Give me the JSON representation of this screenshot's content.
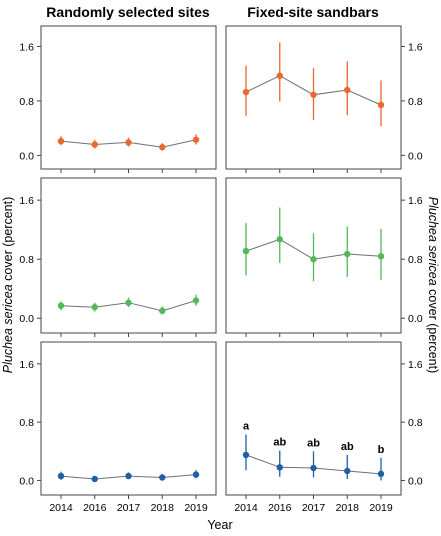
{
  "titles": {
    "left": "Randomly selected sites",
    "right": "Fixed-site sandbars"
  },
  "axis": {
    "xlabel": "Year",
    "ylabel_species": "Pluchea sericea",
    "ylabel_rest": " cover (percent)"
  },
  "colors": {
    "orange": "#e8682e",
    "green": "#52b85a",
    "blue": "#1f5fa8",
    "line": "#707070"
  },
  "chart_data": [
    {
      "type": "line",
      "panel": "row1-left",
      "title": "Randomly selected sites",
      "color": "orange",
      "x": [
        "2014",
        "2016",
        "2017",
        "2018",
        "2019"
      ],
      "y": [
        0.21,
        0.16,
        0.19,
        0.12,
        0.23
      ],
      "err_low": [
        0.15,
        0.1,
        0.13,
        0.07,
        0.16
      ],
      "err_high": [
        0.28,
        0.23,
        0.26,
        0.18,
        0.31
      ],
      "yticks": [
        "0.0",
        "0.8",
        "1.6"
      ],
      "ylim": [
        -0.2,
        1.9
      ],
      "tick_side": "left",
      "show_xticks": false
    },
    {
      "type": "line",
      "panel": "row1-right",
      "title": "Fixed-site sandbars",
      "color": "orange",
      "x": [
        "2014",
        "2016",
        "2017",
        "2018",
        "2019"
      ],
      "y": [
        0.93,
        1.17,
        0.89,
        0.96,
        0.74
      ],
      "err_low": [
        0.58,
        0.79,
        0.52,
        0.59,
        0.43
      ],
      "err_high": [
        1.32,
        1.66,
        1.28,
        1.38,
        1.1
      ],
      "yticks": [
        "0.0",
        "0.8",
        "1.6"
      ],
      "ylim": [
        -0.2,
        1.9
      ],
      "tick_side": "right",
      "show_xticks": false
    },
    {
      "type": "line",
      "panel": "row2-left",
      "color": "green",
      "x": [
        "2014",
        "2016",
        "2017",
        "2018",
        "2019"
      ],
      "y": [
        0.17,
        0.15,
        0.21,
        0.1,
        0.24
      ],
      "err_low": [
        0.11,
        0.09,
        0.15,
        0.05,
        0.17
      ],
      "err_high": [
        0.23,
        0.21,
        0.28,
        0.16,
        0.32
      ],
      "yticks": [
        "0.0",
        "0.8",
        "1.6"
      ],
      "ylim": [
        -0.2,
        1.9
      ],
      "tick_side": "left",
      "show_xticks": false
    },
    {
      "type": "line",
      "panel": "row2-right",
      "color": "green",
      "x": [
        "2014",
        "2016",
        "2017",
        "2018",
        "2019"
      ],
      "y": [
        0.91,
        1.07,
        0.8,
        0.87,
        0.84
      ],
      "err_low": [
        0.58,
        0.75,
        0.5,
        0.56,
        0.52
      ],
      "err_high": [
        1.29,
        1.5,
        1.15,
        1.24,
        1.21
      ],
      "yticks": [
        "0.0",
        "0.8",
        "1.6"
      ],
      "ylim": [
        -0.2,
        1.9
      ],
      "tick_side": "right",
      "show_xticks": false
    },
    {
      "type": "line",
      "panel": "row3-left",
      "color": "blue",
      "x": [
        "2014",
        "2016",
        "2017",
        "2018",
        "2019"
      ],
      "y": [
        0.06,
        0.02,
        0.06,
        0.04,
        0.08
      ],
      "err_low": [
        0.01,
        -0.01,
        0.02,
        0.0,
        0.03
      ],
      "err_high": [
        0.12,
        0.06,
        0.11,
        0.09,
        0.14
      ],
      "yticks": [
        "0.0",
        "0.8",
        "1.6"
      ],
      "ylim": [
        -0.2,
        1.9
      ],
      "tick_side": "left",
      "show_xticks": true
    },
    {
      "type": "line",
      "panel": "row3-right",
      "color": "blue",
      "x": [
        "2014",
        "2016",
        "2017",
        "2018",
        "2019"
      ],
      "y": [
        0.35,
        0.18,
        0.17,
        0.13,
        0.09
      ],
      "err_low": [
        0.14,
        0.05,
        0.04,
        0.02,
        0.0
      ],
      "err_high": [
        0.63,
        0.41,
        0.4,
        0.35,
        0.31
      ],
      "annotations": [
        "a",
        "ab",
        "ab",
        "ab",
        "b"
      ],
      "yticks": [
        "0.0",
        "0.8",
        "1.6"
      ],
      "ylim": [
        -0.2,
        1.9
      ],
      "tick_side": "right",
      "show_xticks": true
    }
  ]
}
